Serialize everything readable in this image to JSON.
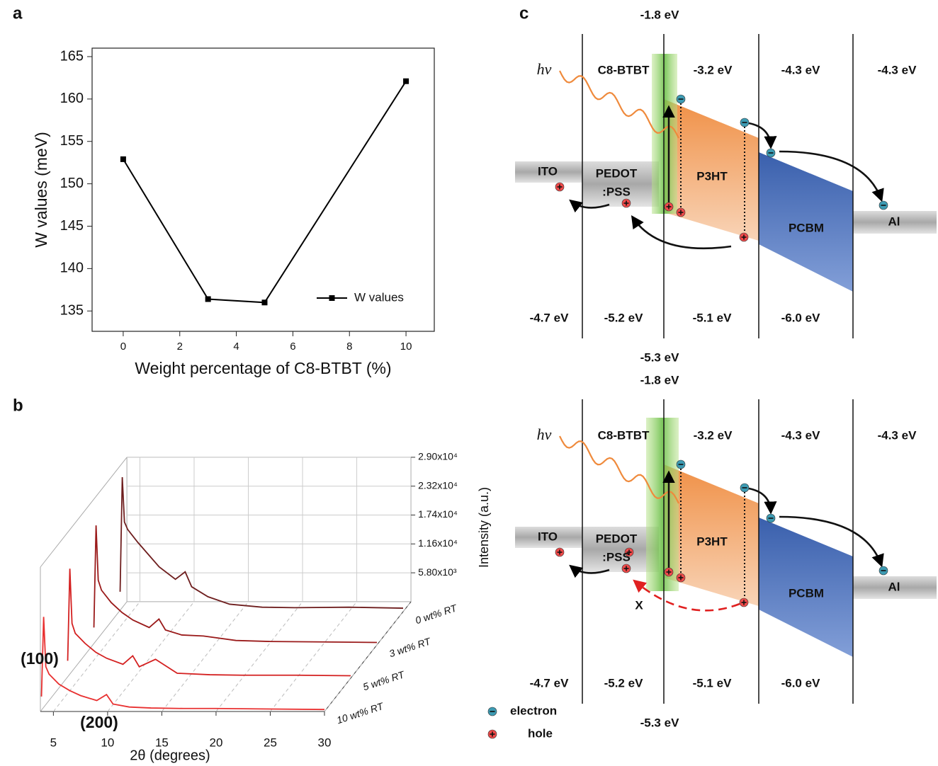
{
  "chart_data": [
    {
      "type": "line",
      "panel_label": "a",
      "x": [
        0,
        3,
        5,
        10
      ],
      "series": [
        {
          "name": "W values",
          "color": "#000000",
          "values": [
            152.9,
            136.4,
            136.0,
            162.1
          ]
        }
      ],
      "xlabel": "Weight percentage of C8-BTBT (%)",
      "ylabel": "W values (meV)",
      "xlim": [
        -1.1,
        11
      ],
      "xticks": [
        0,
        2,
        4,
        6,
        8,
        10
      ],
      "ylim": [
        132.6,
        166
      ],
      "yticks": [
        135,
        140,
        145,
        150,
        155,
        160,
        165
      ],
      "legend": "lower right",
      "marker": "square"
    },
    {
      "type": "waterfall3d",
      "panel_label": "b",
      "xlabel": "2θ (degrees)",
      "ylabel": "Intensity (a.u.)",
      "xlim": [
        3.8,
        30
      ],
      "xticks": [
        5,
        10,
        15,
        20,
        25,
        30
      ],
      "ylim": [
        0,
        29000
      ],
      "yticks": [
        {
          "value": 5800,
          "label": "5.80x10³"
        },
        {
          "value": 11600,
          "label": "1.16x10⁴"
        },
        {
          "value": 17400,
          "label": "1.74x10⁴"
        },
        {
          "value": 23200,
          "label": "2.32x10⁴"
        },
        {
          "value": 29000,
          "label": "2.90x10⁴"
        }
      ],
      "annotations": [
        "(100)",
        "(200)"
      ],
      "x": [
        3.9,
        4.1,
        4.3,
        4.6,
        5.5,
        6.5,
        7.5,
        9,
        9.9,
        10.5,
        12,
        14,
        17,
        20,
        25,
        30
      ],
      "series": [
        {
          "name": "0 wt% RT",
          "color": "#6e1e1e",
          "values": [
            4000,
            27000,
            18000,
            16500,
            14000,
            11500,
            9000,
            6500,
            8000,
            5000,
            3000,
            1500,
            900,
            800,
            900,
            700
          ]
        },
        {
          "name": "3 wt% RT",
          "color": "#9a1a1a",
          "values": [
            3500,
            24000,
            13000,
            11000,
            8500,
            6500,
            5000,
            3500,
            5200,
            3000,
            2000,
            1800,
            900,
            700,
            600,
            500
          ]
        },
        {
          "name": "5 wt% RT",
          "color": "#d42020",
          "values": [
            3500,
            22000,
            11000,
            9000,
            7000,
            5200,
            4000,
            2800,
            4500,
            2300,
            3800,
            1000,
            700,
            600,
            600,
            500
          ]
        },
        {
          "name": "10 wt% RT",
          "color": "#e83030",
          "values": [
            3000,
            19000,
            9000,
            7500,
            5500,
            4200,
            3200,
            2200,
            3400,
            1500,
            900,
            700,
            600,
            600,
            500,
            400
          ]
        }
      ]
    }
  ],
  "diagram": {
    "panel_label": "c",
    "copies": [
      {
        "top_labels": [
          "-1.8 eV",
          "-3.2 eV",
          "-4.3 eV",
          "-4.3 eV"
        ],
        "photon": "hν",
        "c8": "C8-BTBT",
        "ito": "ITO",
        "pedot": [
          "PEDOT",
          ":PSS"
        ],
        "p3ht": "P3HT",
        "pcbm": "PCBM",
        "al": "Al",
        "bottom_labels": [
          "-4.7 eV",
          "-5.2 eV",
          "-5.1 eV",
          "-6.0 eV",
          "-5.3 eV"
        ]
      },
      {
        "top_labels": [
          "-1.8 eV",
          "-3.2 eV",
          "-4.3 eV",
          "-4.3 eV"
        ],
        "photon": "hν",
        "c8": "C8-BTBT",
        "ito": "ITO",
        "pedot": [
          "PEDOT",
          ":PSS"
        ],
        "p3ht": "P3HT",
        "pcbm": "PCBM",
        "al": "Al",
        "bottom_labels": [
          "-4.7 eV",
          "-5.2 eV",
          "-5.1 eV",
          "-6.0 eV",
          "-5.3 eV"
        ],
        "blocked": "X"
      }
    ],
    "legend": [
      "electron",
      "hole"
    ]
  }
}
